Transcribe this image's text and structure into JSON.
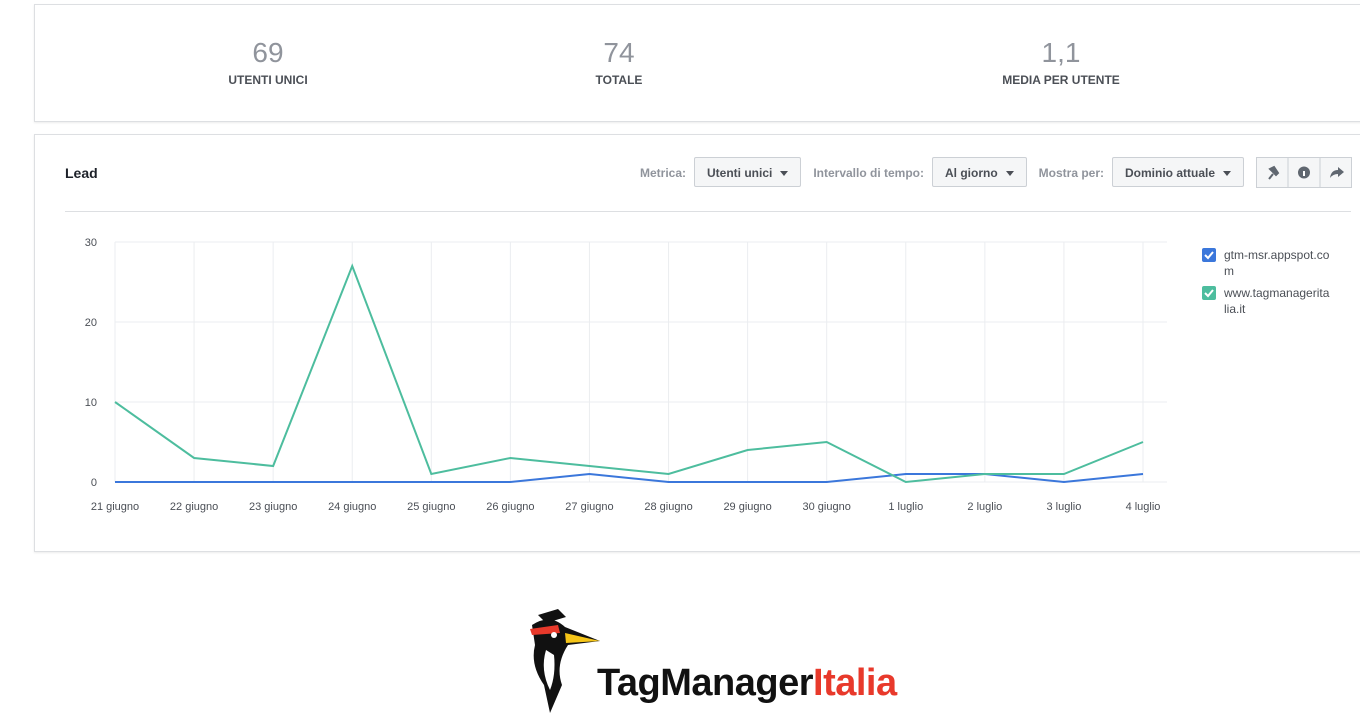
{
  "stats": [
    {
      "value": "69",
      "label": "UTENTI UNICI"
    },
    {
      "value": "74",
      "label": "TOTALE"
    },
    {
      "value": "1,1",
      "label": "MEDIA PER UTENTE"
    }
  ],
  "toolbar": {
    "title": "Lead",
    "metric_label": "Metrica:",
    "metric_value": "Utenti unici",
    "interval_label": "Intervallo di tempo:",
    "interval_value": "Al giorno",
    "show_label": "Mostra per:",
    "show_value": "Dominio attuale"
  },
  "chart_data": {
    "type": "line",
    "categories": [
      "21 giugno",
      "22 giugno",
      "23 giugno",
      "24 giugno",
      "25 giugno",
      "26 giugno",
      "27 giugno",
      "28 giugno",
      "29 giugno",
      "30 giugno",
      "1 luglio",
      "2 luglio",
      "3 luglio",
      "4 luglio"
    ],
    "series": [
      {
        "name": "gtm-msr.appspot.com",
        "color": "#3b77db",
        "values": [
          0,
          0,
          0,
          0,
          0,
          0,
          1,
          0,
          0,
          0,
          1,
          1,
          0,
          1
        ]
      },
      {
        "name": "www.tagmanageritalia.it",
        "color": "#4dbd9e",
        "values": [
          10,
          3,
          2,
          27,
          1,
          3,
          2,
          1,
          4,
          5,
          0,
          1,
          1,
          5
        ]
      }
    ],
    "ylim": [
      0,
      30
    ],
    "yticks": [
      0,
      10,
      20,
      30
    ],
    "grid": true
  },
  "logo": {
    "text_1": "TagManager",
    "text_2": "Italia"
  }
}
